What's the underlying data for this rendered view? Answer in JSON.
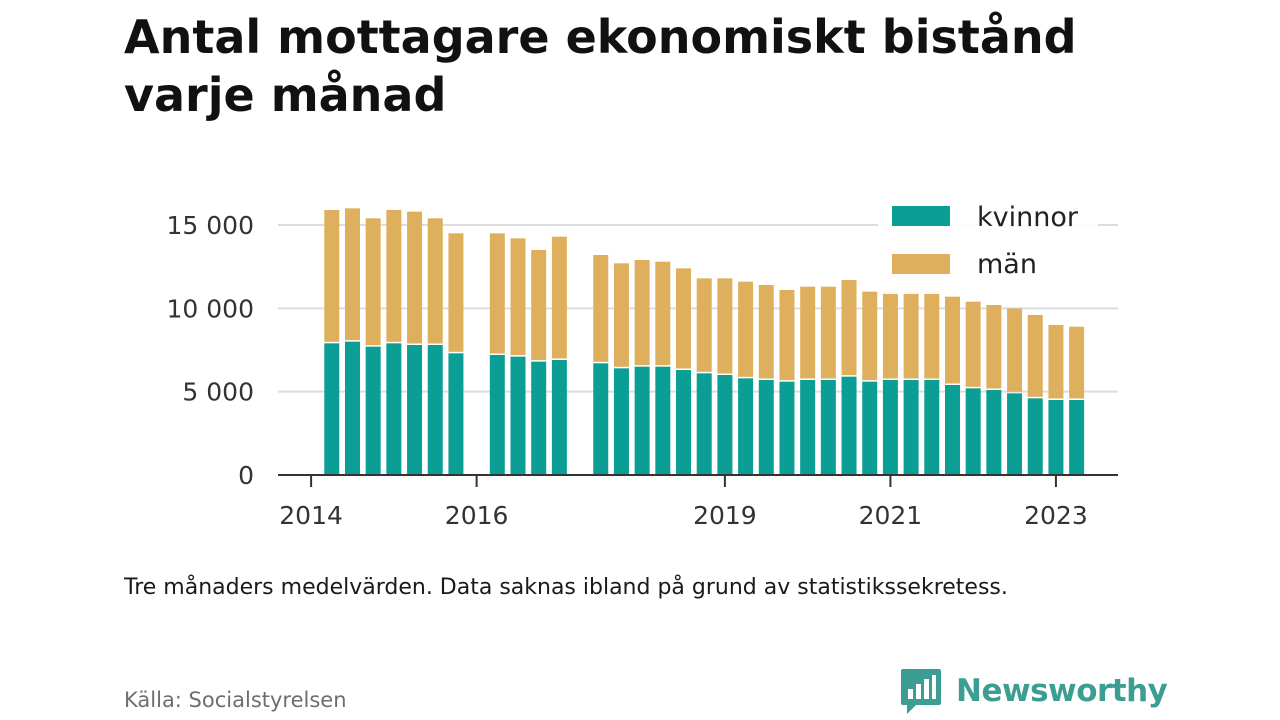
{
  "title": "Antal mottagare ekonomiskt bistånd varje månad",
  "note": "Tre månaders medelvärden. Data saknas ibland på grund av statistikssekretess.",
  "source": "Källa: Socialstyrelsen",
  "brand": {
    "name": "Newsworthy",
    "color": "#3c9e92",
    "icon": "bar-chart-speech-bubble-icon"
  },
  "colors": {
    "kvinnor": "#0a9e94",
    "man": "#deb05d",
    "grid": "#dddddd",
    "axis": "#333333"
  },
  "chart_data": {
    "type": "bar",
    "stacked": true,
    "title": "Antal mottagare ekonomiskt bistånd varje månad",
    "xlabel": "",
    "ylabel": "",
    "ylim": [
      0,
      16500
    ],
    "yticks": [
      0,
      5000,
      10000,
      15000
    ],
    "ytick_labels": [
      "0",
      "5 000",
      "10 000",
      "15 000"
    ],
    "xticks": [
      2014,
      2016,
      2019,
      2021,
      2023
    ],
    "xtick_labels": [
      "2014",
      "2016",
      "2019",
      "2021",
      "2023"
    ],
    "grid": true,
    "legend": "top-right",
    "x": [
      2014.25,
      2014.5,
      2014.75,
      2015.0,
      2015.25,
      2015.5,
      2015.75,
      2016.25,
      2016.5,
      2016.75,
      2017.0,
      2017.5,
      2017.75,
      2018.0,
      2018.25,
      2018.5,
      2018.75,
      2019.0,
      2019.25,
      2019.5,
      2019.75,
      2020.0,
      2020.25,
      2020.5,
      2020.75,
      2021.0,
      2021.25,
      2021.5,
      2021.75,
      2022.0,
      2022.25,
      2022.5,
      2022.75,
      2023.0,
      2023.25
    ],
    "series": [
      {
        "name": "kvinnor",
        "color": "#0a9e94",
        "values": [
          7900,
          8000,
          7700,
          7900,
          7800,
          7800,
          7300,
          7200,
          7100,
          6800,
          6900,
          6700,
          6400,
          6500,
          6500,
          6300,
          6100,
          6000,
          5800,
          5700,
          5600,
          5700,
          5700,
          5900,
          5600,
          5700,
          5700,
          5700,
          5400,
          5200,
          5100,
          4900,
          4600,
          4500,
          4500
        ]
      },
      {
        "name": "män",
        "color": "#deb05d",
        "values": [
          8000,
          8000,
          7700,
          8000,
          8000,
          7600,
          7200,
          7300,
          7100,
          6700,
          7400,
          6500,
          6300,
          6400,
          6300,
          6100,
          5700,
          5800,
          5800,
          5700,
          5500,
          5600,
          5600,
          5800,
          5400,
          5300,
          5300,
          5300,
          5300,
          5200,
          5100,
          5100,
          5000,
          4500,
          4400
        ]
      }
    ]
  }
}
